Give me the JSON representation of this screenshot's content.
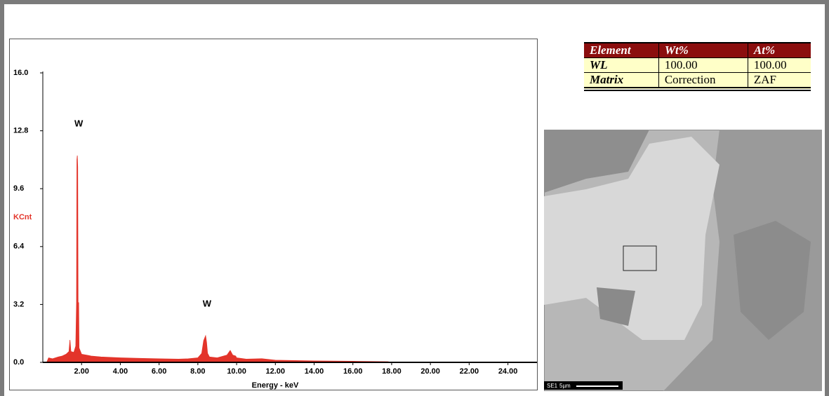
{
  "chart_data": {
    "type": "area",
    "color": "#e3342a",
    "ylabel": "KCnt",
    "xlabel": "Energy - keV",
    "xlim": [
      0,
      25.5
    ],
    "ylim": [
      0,
      16
    ],
    "yticks": [
      {
        "value": 0,
        "label": "0.0"
      },
      3.2,
      6.4,
      9.6,
      12.8,
      {
        "value": 16,
        "label": "16.0"
      }
    ],
    "xticks": [
      {
        "value": 2,
        "label": "2.00"
      },
      {
        "value": 4,
        "label": "4.00"
      },
      {
        "value": 6,
        "label": "6.00"
      },
      {
        "value": 8,
        "label": "8.00"
      },
      {
        "value": 10,
        "label": "10.00"
      },
      {
        "value": 12,
        "label": "12.00"
      },
      {
        "value": 14,
        "label": "14.00"
      },
      {
        "value": 16,
        "label": "16.00"
      },
      {
        "value": 18,
        "label": "18.00"
      },
      {
        "value": 20,
        "label": "20.00"
      },
      {
        "value": 22,
        "label": "22.00"
      },
      {
        "value": 24,
        "label": "24.00"
      }
    ],
    "x": [
      0.2,
      0.3,
      0.5,
      0.8,
      1.0,
      1.2,
      1.35,
      1.4,
      1.45,
      1.6,
      1.7,
      1.74,
      1.76,
      1.78,
      1.8,
      1.82,
      1.85,
      1.87,
      2.0,
      2.5,
      3.0,
      4.0,
      5.0,
      6.0,
      7.0,
      7.5,
      8.0,
      8.2,
      8.3,
      8.4,
      8.45,
      8.5,
      8.6,
      9.0,
      9.5,
      9.67,
      9.8,
      9.95,
      10.0,
      10.5,
      11.3,
      12.0,
      14.0,
      16.0,
      17.8,
      18.0,
      25.0
    ],
    "values": [
      0,
      0.25,
      0.2,
      0.3,
      0.35,
      0.45,
      0.6,
      1.24,
      0.6,
      0.55,
      0.9,
      3.3,
      11.2,
      11.43,
      10.8,
      3.3,
      3.3,
      0.8,
      0.45,
      0.35,
      0.3,
      0.25,
      0.22,
      0.2,
      0.18,
      0.2,
      0.25,
      0.5,
      1.2,
      1.47,
      1.1,
      0.5,
      0.3,
      0.25,
      0.4,
      0.66,
      0.4,
      0.35,
      0.25,
      0.18,
      0.2,
      0.12,
      0.08,
      0.06,
      0.04,
      0,
      0
    ],
    "annotations": [
      {
        "text": "W",
        "x": 1.78
      },
      {
        "text": "W",
        "x": 8.4
      }
    ]
  },
  "table": {
    "header": [
      "Element",
      "Wt%",
      "At%"
    ],
    "rows": [
      [
        "WL",
        "100.00",
        "100.00"
      ],
      [
        "Matrix",
        "Correction",
        "ZAF"
      ]
    ]
  },
  "image": {
    "caption": "SE1",
    "scale": "5µm"
  }
}
